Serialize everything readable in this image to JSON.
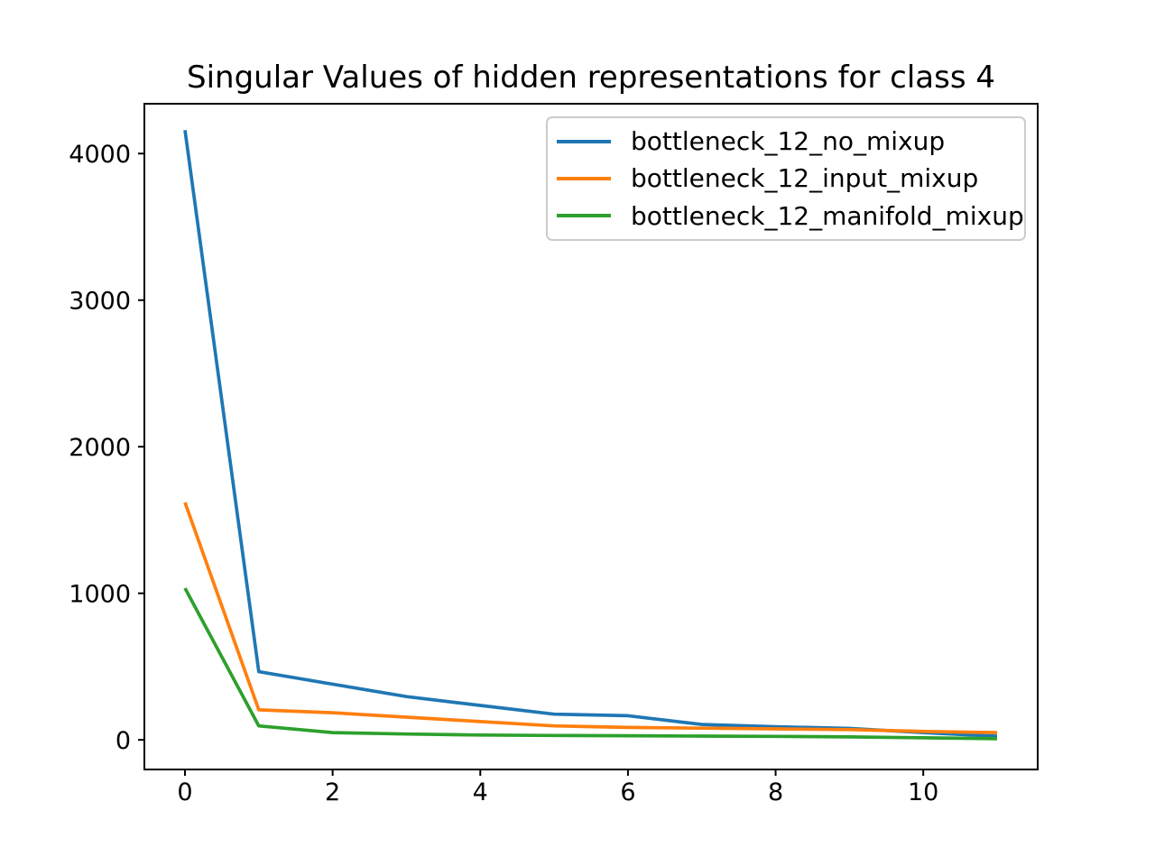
{
  "chart_data": {
    "type": "line",
    "title": "Singular Values of hidden representations for class 4",
    "xlabel": "",
    "ylabel": "",
    "grid": false,
    "legend_position": "upper right",
    "x": [
      0,
      1,
      2,
      3,
      4,
      5,
      6,
      7,
      8,
      9,
      10,
      11
    ],
    "series": [
      {
        "name": "bottleneck_12_no_mixup",
        "color": "#1f77b4",
        "values": [
          4160,
          465,
          380,
          295,
          235,
          175,
          165,
          105,
          90,
          78,
          50,
          25
        ]
      },
      {
        "name": "bottleneck_12_input_mixup",
        "color": "#ff7f0e",
        "values": [
          1620,
          205,
          185,
          155,
          125,
          95,
          85,
          80,
          75,
          70,
          58,
          50
        ]
      },
      {
        "name": "bottleneck_12_manifold_mixup",
        "color": "#2ca02c",
        "values": [
          1035,
          95,
          50,
          40,
          33,
          30,
          28,
          26,
          24,
          20,
          14,
          8
        ]
      }
    ],
    "xticks": [
      0,
      2,
      4,
      6,
      8,
      10
    ],
    "yticks": [
      0,
      1000,
      2000,
      3000,
      4000
    ],
    "xlim": [
      -0.55,
      11.55
    ],
    "ylim": [
      -202,
      4340
    ],
    "axis_color": "#000000",
    "legend_border_color": "#cccccc"
  }
}
